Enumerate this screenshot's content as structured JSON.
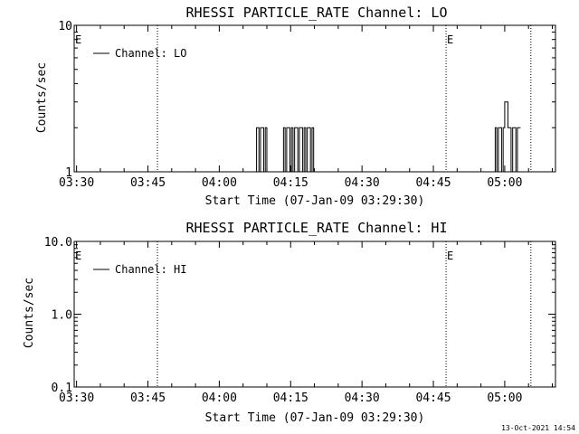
{
  "footer": {
    "timestamp": "13-Oct-2021 14:54"
  },
  "chart_data": [
    {
      "type": "line",
      "title": "RHESSI PARTICLE_RATE Channel: LO",
      "xlabel": "Start Time (07-Jan-09 03:29:30)",
      "ylabel": "Counts/sec",
      "y_scale": "log",
      "ylim": [
        1,
        10
      ],
      "y_ticks": [
        "1",
        "10"
      ],
      "xlim": [
        "03:29:30",
        "05:10:40"
      ],
      "x_ticks": [
        "03:30",
        "03:45",
        "04:00",
        "04:15",
        "04:30",
        "04:45",
        "05:00"
      ],
      "event_lines": [
        "03:47:00",
        "04:47:40",
        "05:05:30"
      ],
      "event_markers": [
        {
          "x": "03:29:30",
          "label": "E"
        },
        {
          "x": "04:47:40",
          "label": "E"
        }
      ],
      "legend": {
        "placement": "top-left",
        "label": "Channel: LO"
      },
      "series": [
        {
          "name": "Channel: LO",
          "x": [
            "04:07:30",
            "04:07:50",
            "04:08:10",
            "04:08:20",
            "04:08:40",
            "04:09:00",
            "04:09:20",
            "04:09:40",
            "04:10:00",
            "04:10:20",
            "04:13:30",
            "04:13:50",
            "04:14:10",
            "04:14:30",
            "04:14:50",
            "04:15:10",
            "04:15:30",
            "04:15:50",
            "04:16:10",
            "04:16:30",
            "04:16:50",
            "04:17:10",
            "04:17:30",
            "04:17:50",
            "04:18:10",
            "04:18:30",
            "04:18:50",
            "04:19:10",
            "04:19:30",
            "04:19:50",
            "04:20:10",
            "04:58:00",
            "04:58:20",
            "04:58:40",
            "04:59:00",
            "04:59:20",
            "04:59:40",
            "05:00:00",
            "05:00:20",
            "05:00:40",
            "05:01:00",
            "05:01:20",
            "05:01:40",
            "05:02:00",
            "05:02:20",
            "05:02:40",
            "05:03:00"
          ],
          "y": [
            1,
            2,
            2,
            1,
            2,
            2,
            1,
            2,
            1,
            1,
            2,
            1,
            2,
            2,
            1,
            2,
            1,
            2,
            2,
            1,
            2,
            2,
            1,
            2,
            1,
            2,
            2,
            1,
            2,
            1,
            1,
            2,
            1,
            2,
            2,
            1,
            2,
            3,
            3,
            2,
            2,
            1,
            2,
            2,
            1,
            2,
            2
          ]
        }
      ]
    },
    {
      "type": "line",
      "title": "RHESSI PARTICLE_RATE Channel: HI",
      "xlabel": "Start Time (07-Jan-09 03:29:30)",
      "ylabel": "Counts/sec",
      "y_scale": "log",
      "ylim": [
        0.1,
        10
      ],
      "y_ticks": [
        "0.1",
        "1.0",
        "10.0"
      ],
      "xlim": [
        "03:29:30",
        "05:10:40"
      ],
      "x_ticks": [
        "03:30",
        "03:45",
        "04:00",
        "04:15",
        "04:30",
        "04:45",
        "05:00"
      ],
      "event_lines": [
        "03:47:00",
        "04:47:40",
        "05:05:30"
      ],
      "event_markers": [
        {
          "x": "03:29:30",
          "label": "E"
        },
        {
          "x": "04:47:40",
          "label": "E"
        }
      ],
      "legend": {
        "placement": "top-left",
        "label": "Channel: HI"
      },
      "series": [
        {
          "name": "Channel: HI",
          "x": [],
          "y": []
        }
      ]
    }
  ]
}
